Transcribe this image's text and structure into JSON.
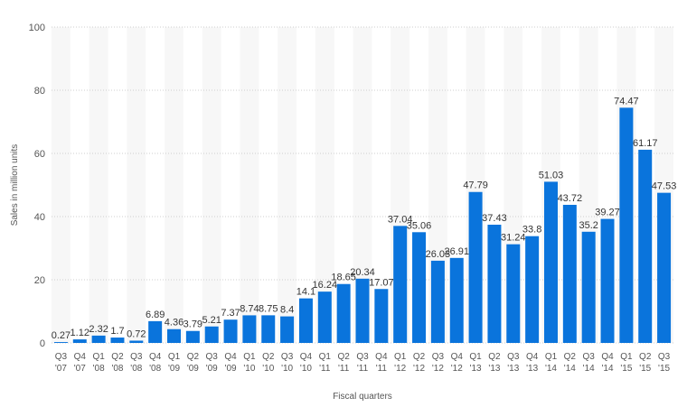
{
  "chart_data": {
    "type": "bar",
    "xlabel": "Fiscal quarters",
    "ylabel": "Sales in million units",
    "ylim": [
      0,
      100
    ],
    "yticks": [
      0,
      20,
      40,
      60,
      80,
      100
    ],
    "grid": true,
    "categories": [
      {
        "q": "Q3",
        "y": "'07"
      },
      {
        "q": "Q4",
        "y": "'07"
      },
      {
        "q": "Q1",
        "y": "'08"
      },
      {
        "q": "Q2",
        "y": "'08"
      },
      {
        "q": "Q3",
        "y": "'08"
      },
      {
        "q": "Q4",
        "y": "'08"
      },
      {
        "q": "Q1",
        "y": "'09"
      },
      {
        "q": "Q2",
        "y": "'09"
      },
      {
        "q": "Q3",
        "y": "'09"
      },
      {
        "q": "Q4",
        "y": "'09"
      },
      {
        "q": "Q1",
        "y": "'10"
      },
      {
        "q": "Q2",
        "y": "'10"
      },
      {
        "q": "Q3",
        "y": "'10"
      },
      {
        "q": "Q4",
        "y": "'10"
      },
      {
        "q": "Q1",
        "y": "'11"
      },
      {
        "q": "Q2",
        "y": "'11"
      },
      {
        "q": "Q3",
        "y": "'11"
      },
      {
        "q": "Q4",
        "y": "'11"
      },
      {
        "q": "Q1",
        "y": "'12"
      },
      {
        "q": "Q2",
        "y": "'12"
      },
      {
        "q": "Q3",
        "y": "'12"
      },
      {
        "q": "Q4",
        "y": "'12"
      },
      {
        "q": "Q1",
        "y": "'13"
      },
      {
        "q": "Q2",
        "y": "'13"
      },
      {
        "q": "Q3",
        "y": "'13"
      },
      {
        "q": "Q4",
        "y": "'13"
      },
      {
        "q": "Q1",
        "y": "'14"
      },
      {
        "q": "Q2",
        "y": "'14"
      },
      {
        "q": "Q3",
        "y": "'14"
      },
      {
        "q": "Q4",
        "y": "'14"
      },
      {
        "q": "Q1",
        "y": "'15"
      },
      {
        "q": "Q2",
        "y": "'15"
      },
      {
        "q": "Q3",
        "y": "'15"
      }
    ],
    "values": [
      0.27,
      1.12,
      2.32,
      1.7,
      0.72,
      6.89,
      4.36,
      3.79,
      5.21,
      7.37,
      8.74,
      8.75,
      8.4,
      14.1,
      16.24,
      18.65,
      20.34,
      17.07,
      37.04,
      35.06,
      26.03,
      26.91,
      47.79,
      37.43,
      31.24,
      33.8,
      51.03,
      43.72,
      35.2,
      39.27,
      74.47,
      61.17,
      47.53
    ],
    "colors": {
      "bar": "#0a74dc",
      "stripe": "#f7f7f7",
      "grid": "#cfcfcf",
      "text": "#555555",
      "label": "#333333"
    }
  }
}
